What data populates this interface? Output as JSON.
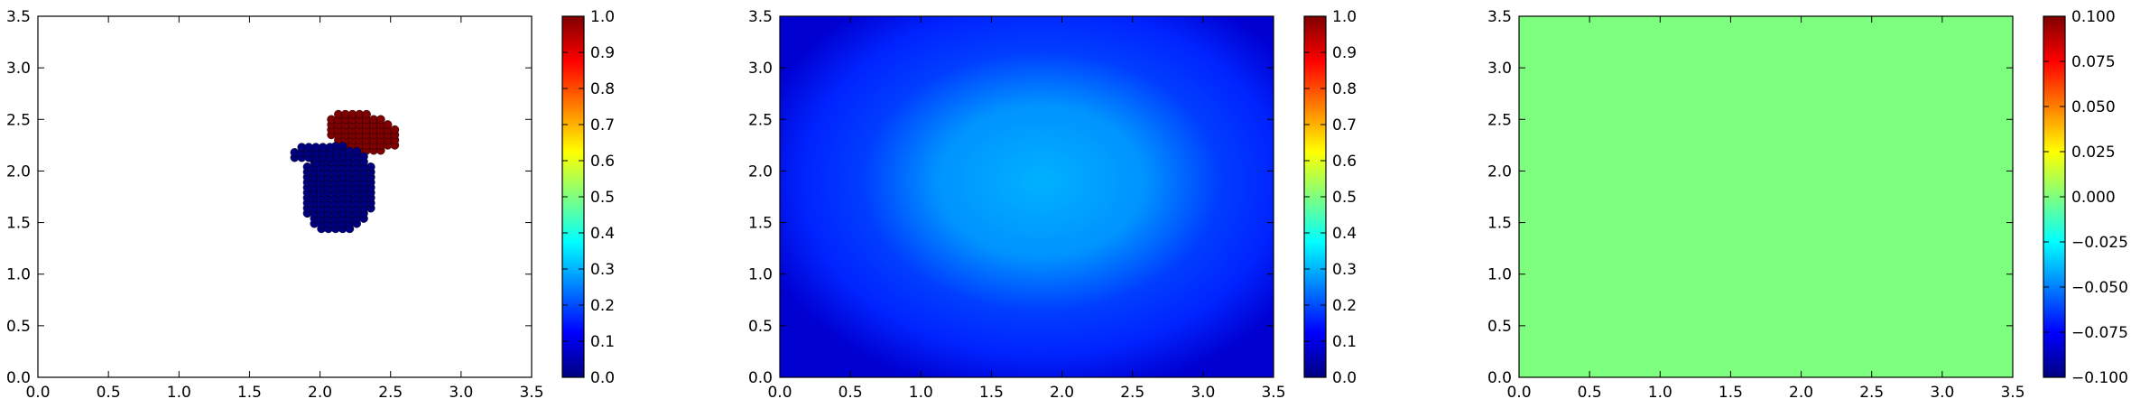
{
  "colormap": [
    "#00007f",
    "#0000ff",
    "#007fff",
    "#00ffff",
    "#7fff7f",
    "#ffff00",
    "#ff7f00",
    "#ff0000",
    "#7f0000"
  ],
  "chart_data": [
    {
      "type": "scatter",
      "xlim": [
        0,
        3.5
      ],
      "ylim": [
        0,
        3.5
      ],
      "xticks": [
        "0.0",
        "0.5",
        "1.0",
        "1.5",
        "2.0",
        "2.5",
        "3.0",
        "3.5"
      ],
      "yticks": [
        "0.0",
        "0.5",
        "1.0",
        "1.5",
        "2.0",
        "2.5",
        "3.0",
        "3.5"
      ],
      "colorbar": {
        "range": [
          0,
          1
        ],
        "ticks": [
          "0.0",
          "0.1",
          "0.2",
          "0.3",
          "0.4",
          "0.5",
          "0.6",
          "0.7",
          "0.8",
          "0.9",
          "1.0"
        ]
      },
      "series": [
        {
          "value": 1.0,
          "color": "#7f0000",
          "cluster": {
            "center": [
              2.3,
              2.38
            ],
            "rx": 0.27,
            "ry": 0.18,
            "tilt": -0.35
          }
        },
        {
          "value": 0.0,
          "color": "#00007f",
          "cluster": {
            "center": [
              2.13,
              1.82
            ],
            "rx": 0.27,
            "ry": 0.43,
            "tilt": 0.0
          }
        },
        {
          "value": 0.0,
          "color": "#00007f",
          "cluster": {
            "center": [
              1.97,
              2.17
            ],
            "rx": 0.2,
            "ry": 0.09,
            "tilt": 0.0
          }
        }
      ]
    },
    {
      "type": "heatmap",
      "xlim": [
        0,
        3.5
      ],
      "ylim": [
        0,
        3.5
      ],
      "xticks": [
        "0.0",
        "0.5",
        "1.0",
        "1.5",
        "2.0",
        "2.5",
        "3.0",
        "3.5"
      ],
      "yticks": [
        "0.0",
        "0.5",
        "1.0",
        "1.5",
        "2.0",
        "2.5",
        "3.0",
        "3.5"
      ],
      "colorbar": {
        "range": [
          0,
          1
        ],
        "ticks": [
          "0.0",
          "0.1",
          "0.2",
          "0.3",
          "0.4",
          "0.5",
          "0.6",
          "0.7",
          "0.8",
          "0.9",
          "1.0"
        ]
      },
      "field": {
        "center": [
          1.85,
          1.9
        ],
        "peak": 0.3,
        "edge_value": 0.08,
        "corner_value": 0.02
      }
    },
    {
      "type": "heatmap",
      "xlim": [
        0,
        3.5
      ],
      "ylim": [
        0,
        3.5
      ],
      "xticks": [
        "0.0",
        "0.5",
        "1.0",
        "1.5",
        "2.0",
        "2.5",
        "3.0",
        "3.5"
      ],
      "yticks": [
        "0.0",
        "0.5",
        "1.0",
        "1.5",
        "2.0",
        "2.5",
        "3.0",
        "3.5"
      ],
      "colorbar": {
        "range": [
          -0.1,
          0.1
        ],
        "ticks": [
          "−0.100",
          "−0.075",
          "−0.050",
          "−0.025",
          "0.000",
          "0.025",
          "0.050",
          "0.075",
          "0.100"
        ]
      },
      "field": {
        "uniform_value": 0.0,
        "color": "#7fff7f"
      }
    }
  ]
}
